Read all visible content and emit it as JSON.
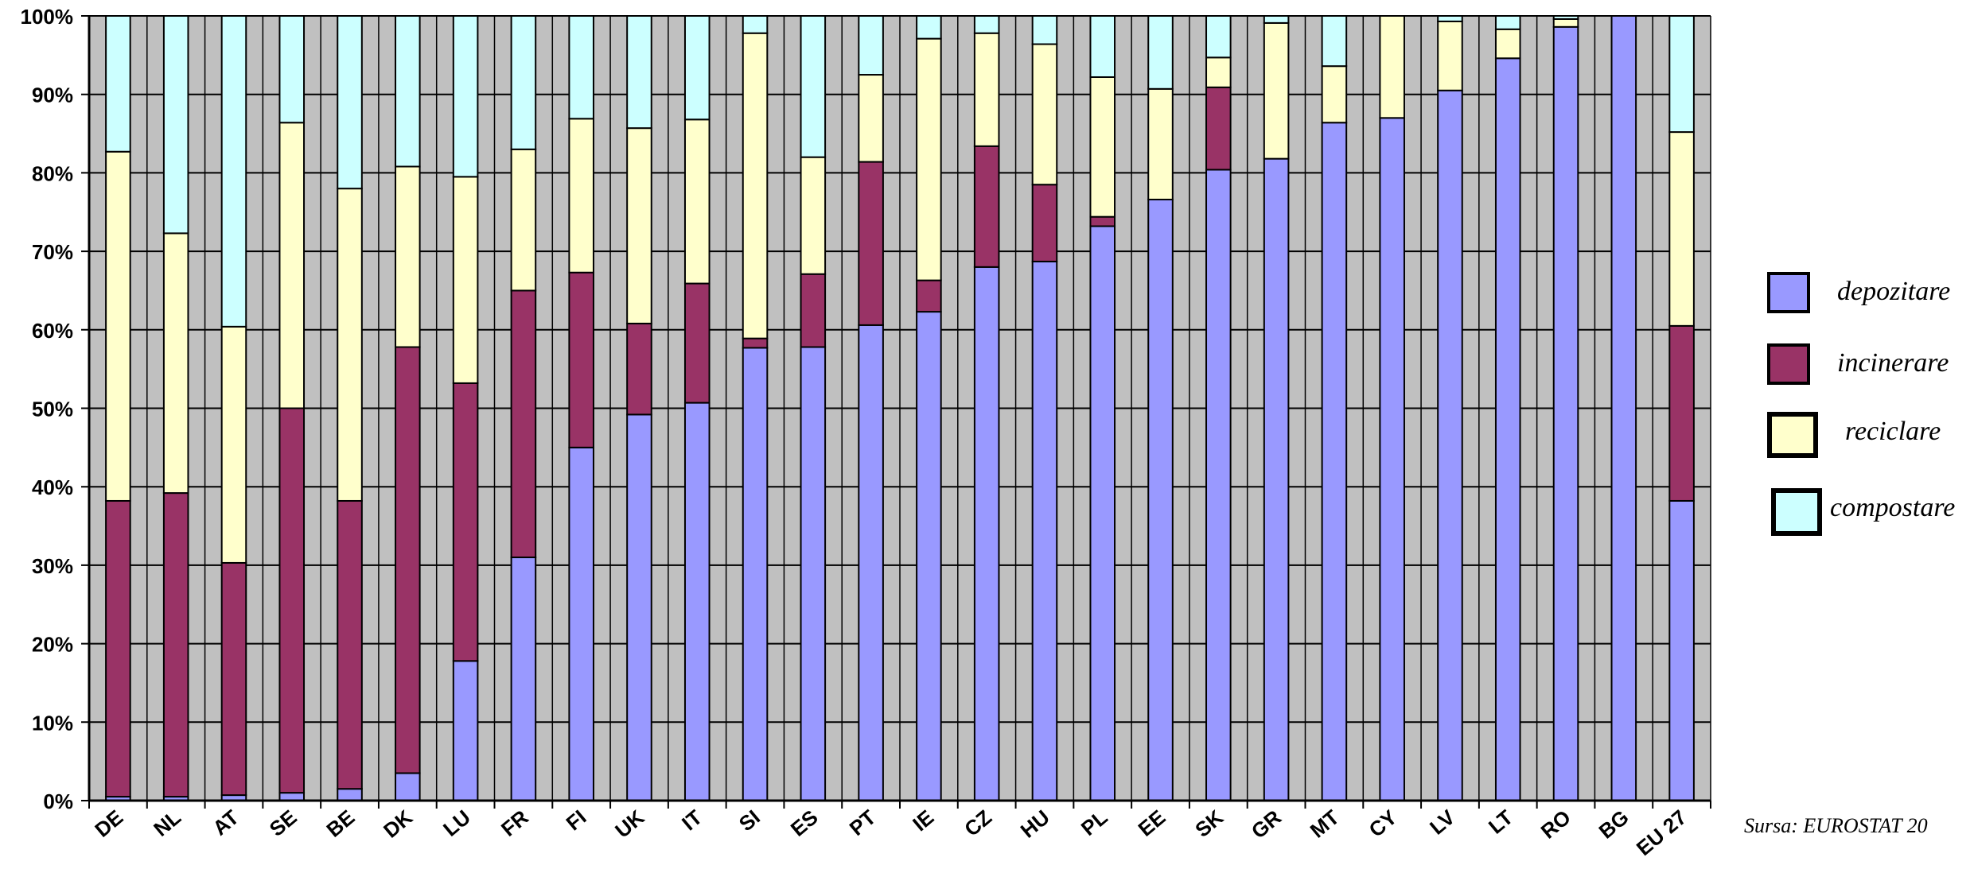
{
  "chart_data": {
    "type": "bar",
    "stacked": "percent",
    "title": "",
    "ylim": [
      0,
      100
    ],
    "y_ticks": [
      "0%",
      "10%",
      "20%",
      "30%",
      "40%",
      "50%",
      "60%",
      "70%",
      "80%",
      "90%",
      "100%"
    ],
    "grid": true,
    "legend_position": "right",
    "categories": [
      "DE",
      "NL",
      "AT",
      "SE",
      "BE",
      "DK",
      "LU",
      "FR",
      "FI",
      "UK",
      "IT",
      "SI",
      "ES",
      "PT",
      "IE",
      "CZ",
      "HU",
      "PL",
      "EE",
      "SK",
      "GR",
      "MT",
      "CY",
      "LV",
      "LT",
      "RO",
      "BG",
      "EU 27"
    ],
    "series": [
      {
        "name": "depozitare",
        "color": "#9999ff",
        "values": [
          0.5,
          0.5,
          0.7,
          1,
          1.5,
          3.5,
          17.8,
          31,
          45,
          49.2,
          50.7,
          57.7,
          57.8,
          60.6,
          62.3,
          68,
          68.7,
          73.2,
          76.6,
          80.4,
          81.8,
          86.4,
          87,
          90.5,
          94.6,
          98.6,
          100,
          38.2
        ]
      },
      {
        "name": "incinerare",
        "color": "#993366",
        "values": [
          37.7,
          38.7,
          29.6,
          49,
          36.7,
          54.3,
          35.4,
          34,
          22.3,
          11.6,
          15.2,
          1.2,
          9.3,
          20.8,
          4,
          15.4,
          9.8,
          1.2,
          0,
          10.5,
          0,
          0,
          0,
          0,
          0,
          0,
          0,
          22.3
        ]
      },
      {
        "name": "reciclare",
        "color": "#ffffcc",
        "values": [
          44.5,
          33.1,
          30.1,
          36.4,
          39.8,
          23,
          26.3,
          18,
          19.6,
          24.9,
          20.9,
          38.9,
          14.9,
          11.1,
          30.8,
          14.4,
          17.9,
          17.8,
          14.1,
          3.8,
          17.3,
          7.2,
          13,
          8.8,
          3.7,
          1,
          0,
          24.7
        ]
      },
      {
        "name": "compostare",
        "color": "#ccffff",
        "values": [
          17.3,
          27.7,
          39.6,
          13.6,
          22,
          19.2,
          20.5,
          17,
          13.1,
          14.3,
          13.2,
          2.2,
          18,
          7.5,
          2.9,
          2.2,
          3.6,
          7.8,
          9.3,
          5.3,
          0.9,
          6.4,
          0,
          0.7,
          1.7,
          0.4,
          0,
          14.8
        ]
      }
    ]
  },
  "source_note": "Sursa: EUROSTAT  20"
}
